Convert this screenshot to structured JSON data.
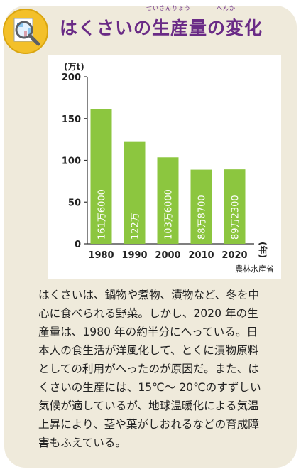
{
  "title": "はくさいの生産量の変化",
  "title_ruby": {
    "seisanryou": "せいさんりょう",
    "henka": "へんか"
  },
  "icon": "magnifier-report-icon",
  "colors": {
    "title": "#6a2b86",
    "bar": "#8cc63f",
    "card": "#efeadb",
    "badge": "#f3c02a"
  },
  "chart_data": {
    "type": "bar",
    "ylabel": "(万t)",
    "xlabel": "(年)",
    "ylim": [
      0,
      200
    ],
    "yticks": [
      0,
      50,
      100,
      150,
      200
    ],
    "categories": [
      "1980",
      "1990",
      "2000",
      "2010",
      "2020"
    ],
    "values": [
      161.6,
      122,
      103.6,
      88.87,
      89.23
    ],
    "data_labels": [
      "161万6000",
      "122万",
      "103万6000",
      "88万8700",
      "89万2300"
    ],
    "source": "農林水産省",
    "grid": false
  },
  "body_lines": [
    "はくさいは、鍋物や煮物、漬物など、冬を中",
    "心に食べられる野菜。しかし、2020 年の生",
    "産量は、1980 年の約半分にへっている。日",
    "本人の食生活が洋風化して、とくに漬物原料",
    "としての利用がへったのが原因だ。また、は",
    "くさいの生産には、15℃～ 20℃のすずしい",
    "気候が適しているが、地球温暖化による気温",
    "上昇により、茎や葉がしおれるなどの育成障",
    "害もふえている。"
  ]
}
